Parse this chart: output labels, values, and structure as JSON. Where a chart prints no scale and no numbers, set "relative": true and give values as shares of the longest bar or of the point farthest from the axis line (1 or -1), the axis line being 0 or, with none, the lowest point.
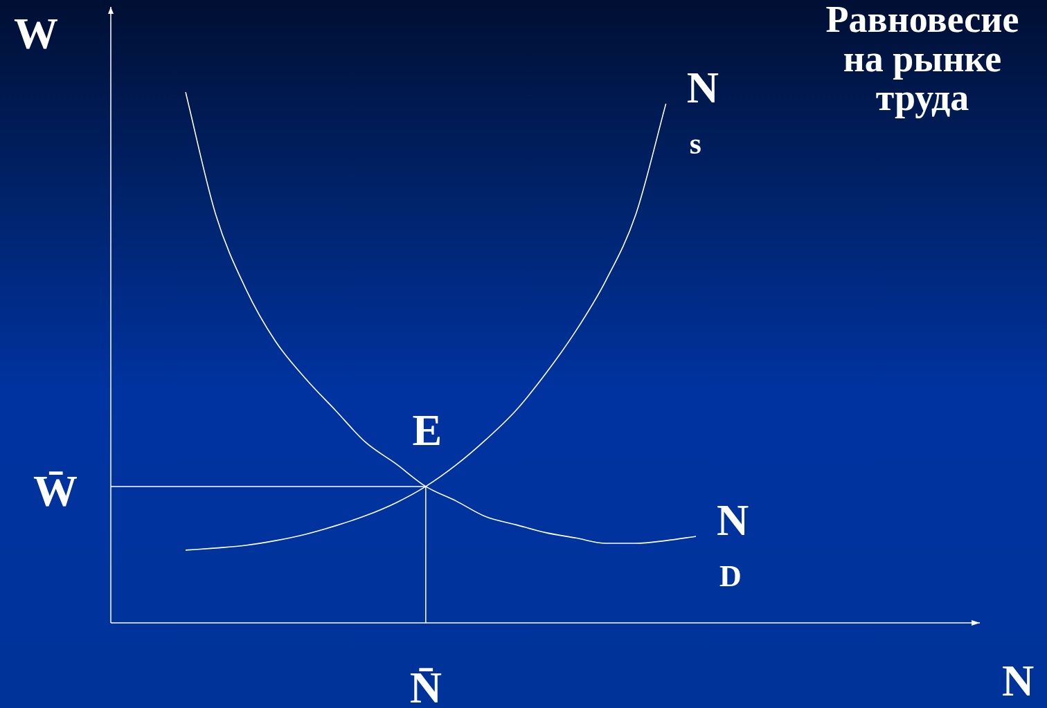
{
  "chart_data": {
    "type": "line",
    "relative": true,
    "title": "Равновесие на рынке труда",
    "ylabel": "W",
    "marker": "none",
    "categories": [
      null,
      null,
      null,
      null,
      null,
      null,
      null,
      null,
      null,
      null,
      null,
      null,
      null,
      null,
      null,
      null,
      null,
      null
    ],
    "series": [
      {
        "name": "N$_{s}$",
        "color": "#ffffff",
        "values": [
          0.137,
          0.141,
          0.146,
          0.155,
          0.167,
          0.183,
          0.202,
          0.226,
          0.257,
          0.297,
          0.345,
          0.4,
          0.47,
          0.55,
          0.645,
          0.77,
          0.978,
          null
        ]
      },
      {
        "name": "N$_{D}$",
        "color": "#ffffff",
        "values": [
          1.0,
          0.77,
          0.63,
          0.53,
          0.46,
          0.4,
          0.34,
          0.3,
          0.257,
          0.23,
          0.2,
          0.185,
          0.17,
          0.16,
          0.15,
          0.15,
          0.155,
          0.163
        ]
      }
    ],
    "ref_lines": [
      {
        "axis": "y",
        "value": 0.257,
        "label": "W̄",
        "color": "#ffffff"
      }
    ],
    "annotations": [
      "E",
      "N̄",
      "N"
    ]
  }
}
